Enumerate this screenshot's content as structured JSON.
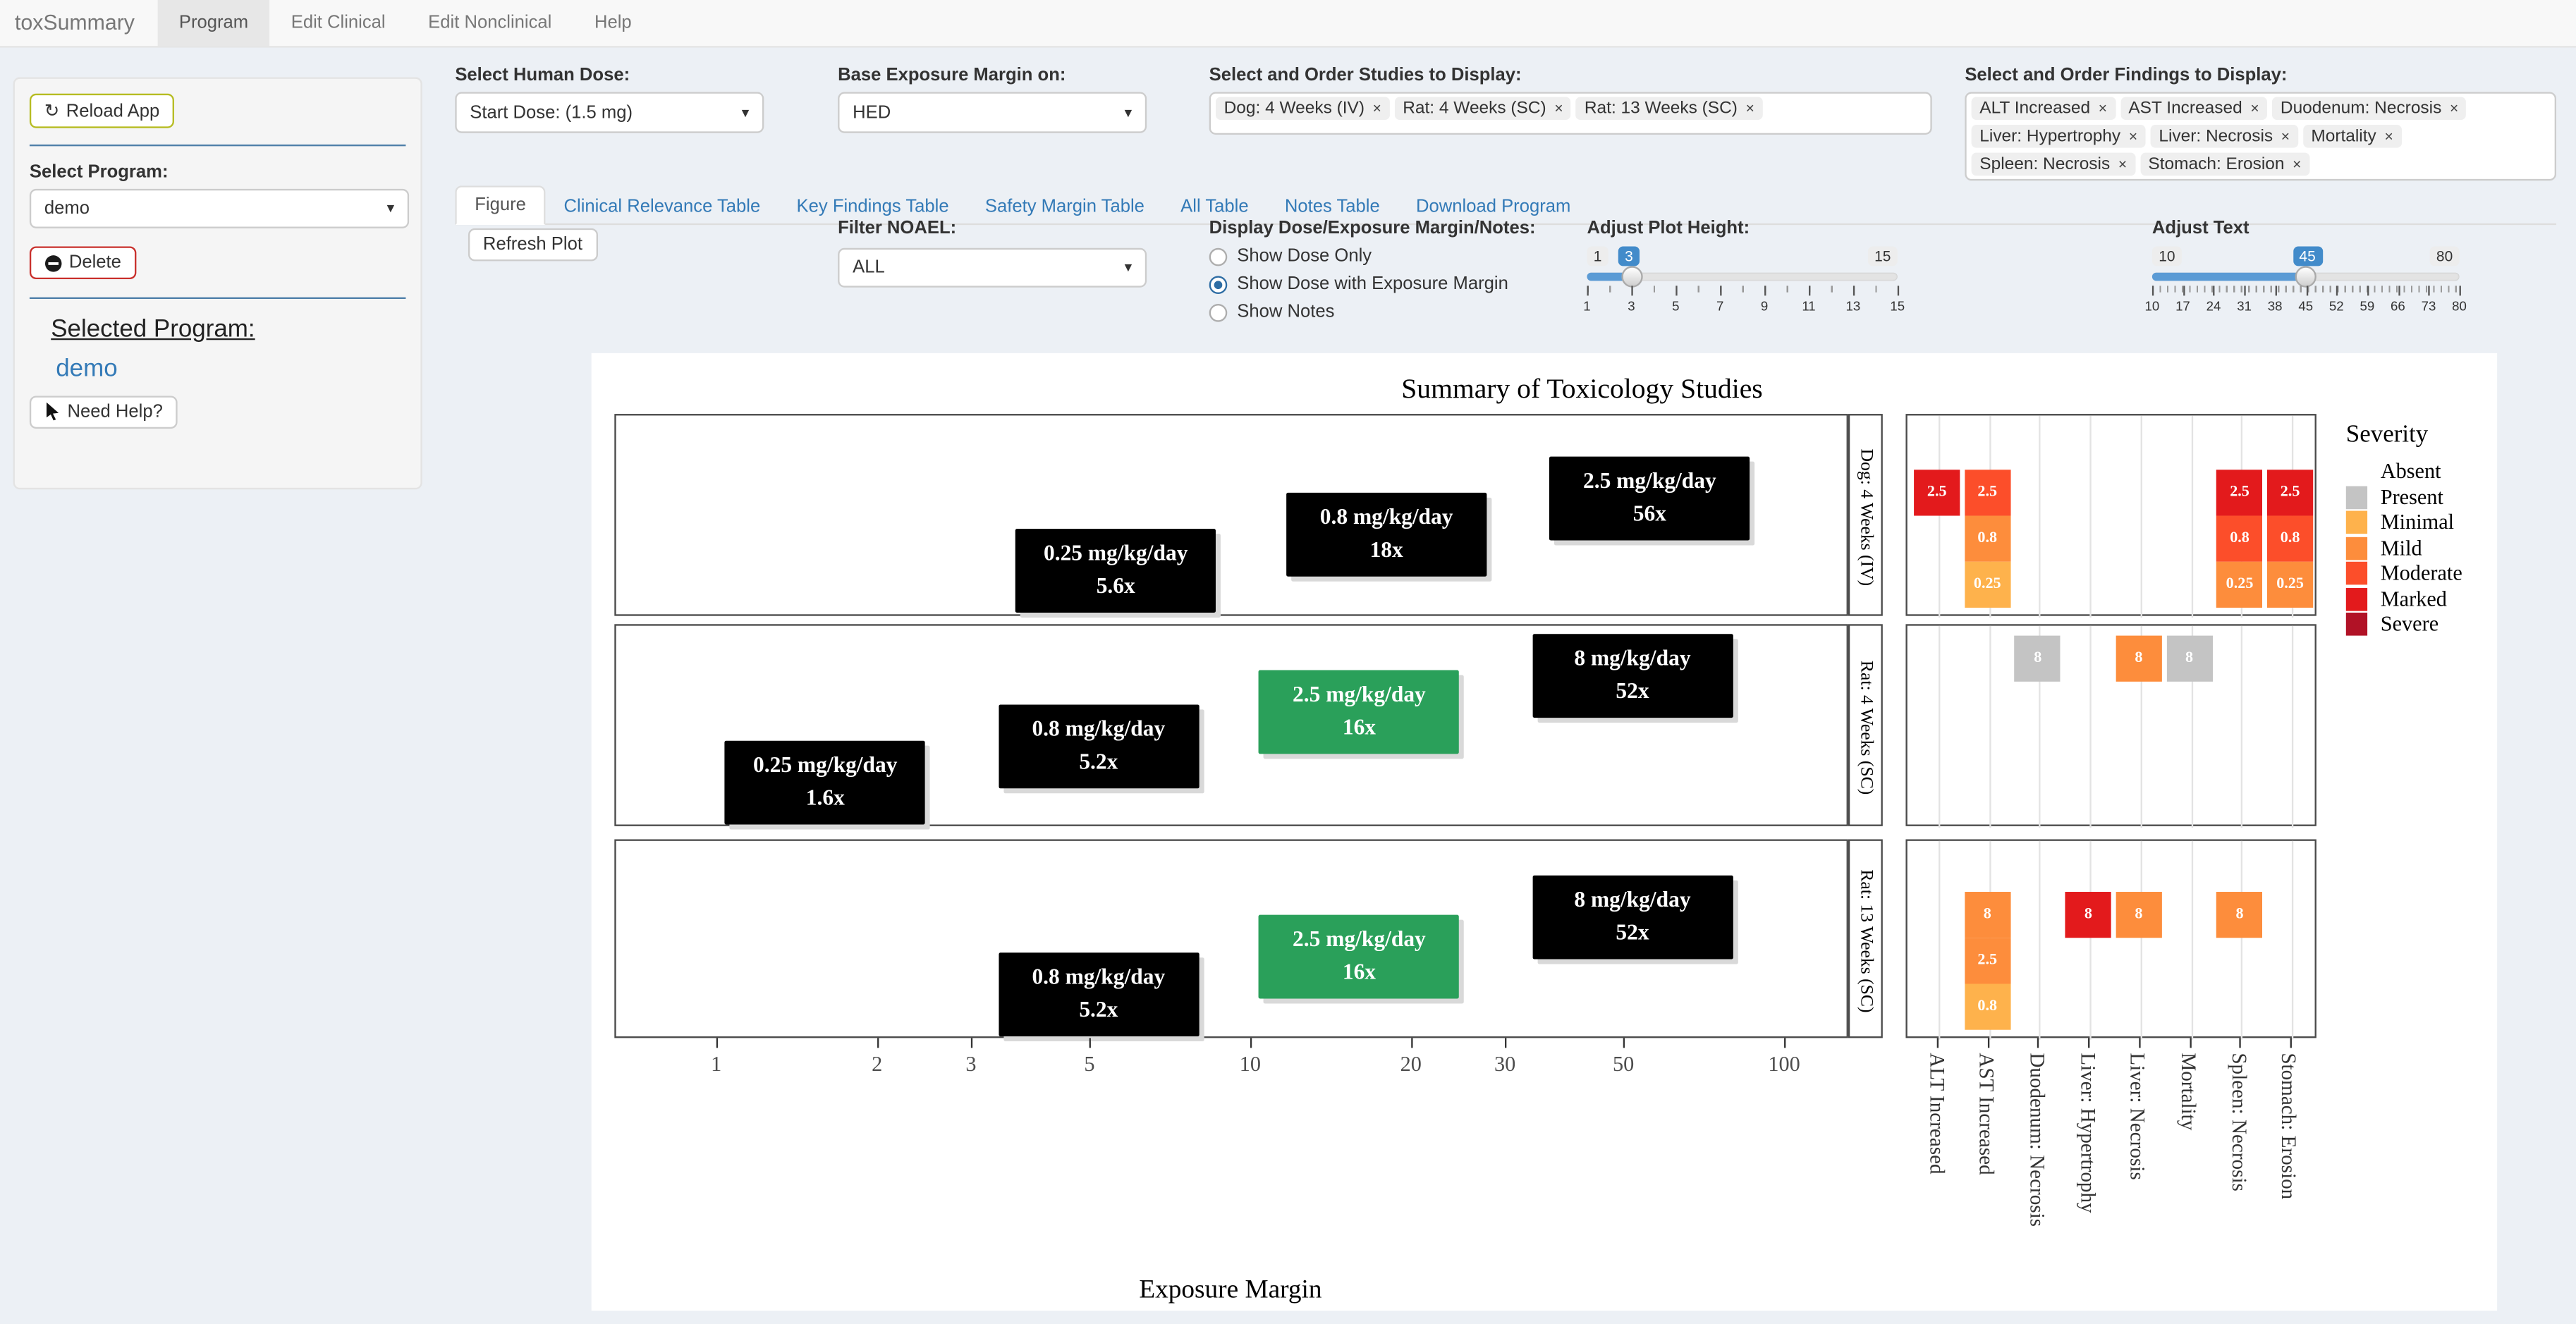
{
  "navbar": {
    "brand": "toxSummary",
    "tabs": [
      {
        "label": "Program",
        "active": true
      },
      {
        "label": "Edit Clinical",
        "active": false
      },
      {
        "label": "Edit Nonclinical",
        "active": false
      },
      {
        "label": "Help",
        "active": false
      }
    ]
  },
  "sidebar": {
    "reload_label": "Reload App",
    "select_program_label": "Select Program:",
    "program_value": "demo",
    "delete_label": "Delete",
    "selected_program_heading": "Selected Program:",
    "selected_program_value": "demo",
    "need_help_label": "Need Help?"
  },
  "controls": {
    "human_dose": {
      "label": "Select Human Dose:",
      "value": "Start Dose: (1.5 mg)"
    },
    "base_margin": {
      "label": "Base Exposure Margin on:",
      "value": "HED"
    },
    "studies": {
      "label": "Select and Order Studies to Display:",
      "tags": [
        "Dog: 4 Weeks (IV)",
        "Rat: 4 Weeks (SC)",
        "Rat: 13 Weeks (SC)"
      ]
    },
    "findings": {
      "label": "Select and Order Findings to Display:",
      "tags": [
        "ALT Increased",
        "AST Increased",
        "Duodenum: Necrosis",
        "Liver: Hypertrophy",
        "Liver: Necrosis",
        "Mortality",
        "Spleen: Necrosis",
        "Stomach: Erosion"
      ]
    },
    "filter_noael": {
      "label": "Filter NOAEL:",
      "value": "ALL"
    },
    "display_mode": {
      "label": "Display Dose/Exposure Margin/Notes:",
      "options": [
        {
          "label": "Show Dose Only",
          "selected": false
        },
        {
          "label": "Show Dose with Exposure Margin",
          "selected": true
        },
        {
          "label": "Show Notes",
          "selected": false
        }
      ]
    },
    "plot_height": {
      "label": "Adjust Plot Height:",
      "min": 1,
      "max": 15,
      "value": 3,
      "ticks": [
        1,
        3,
        5,
        7,
        9,
        11,
        13,
        15
      ]
    },
    "text_size": {
      "label": "Adjust Text",
      "min": 10,
      "max": 80,
      "value": 45,
      "ticks": [
        10,
        17,
        24,
        31,
        38,
        45,
        52,
        59,
        66,
        73,
        80
      ]
    }
  },
  "main_tabs": [
    {
      "label": "Figure",
      "active": true
    },
    {
      "label": "Clinical Relevance Table",
      "active": false
    },
    {
      "label": "Key Findings Table",
      "active": false
    },
    {
      "label": "Safety Margin Table",
      "active": false
    },
    {
      "label": "All Table",
      "active": false
    },
    {
      "label": "Notes Table",
      "active": false
    },
    {
      "label": "Download Program",
      "active": false
    }
  ],
  "refresh_button": "Refresh Plot",
  "chart_data": {
    "type": "custom-toxicology-summary",
    "title": "Summary of Toxicology Studies",
    "xlabel": "Exposure Margin",
    "x_scale": "log10",
    "x_ticks": [
      1,
      2,
      3,
      5,
      10,
      20,
      30,
      50,
      100
    ],
    "findings_columns": [
      "ALT Increased",
      "AST Increased",
      "Duodenum: Necrosis",
      "Liver: Hypertrophy",
      "Liver: Necrosis",
      "Mortality",
      "Spleen: Necrosis",
      "Stomach: Erosion"
    ],
    "severity_legend": {
      "title": "Severity",
      "levels": [
        {
          "label": "Absent",
          "color": "#FFFFFF"
        },
        {
          "label": "Present",
          "color": "#C4C4C4"
        },
        {
          "label": "Minimal",
          "color": "#FEB24C"
        },
        {
          "label": "Mild",
          "color": "#FD8D3C"
        },
        {
          "label": "Moderate",
          "color": "#FC4E2A"
        },
        {
          "label": "Marked",
          "color": "#E31A1C"
        },
        {
          "label": "Severe",
          "color": "#B11226"
        }
      ]
    },
    "dose_color": "#000000",
    "noael_color": "#2AA05A",
    "studies": [
      {
        "label": "Dog: 4 Weeks (IV)",
        "doses": [
          {
            "dose": "0.25 mg/kg/day",
            "margin": "5.6x",
            "x": 5.6,
            "noael": false
          },
          {
            "dose": "0.8 mg/kg/day",
            "margin": "18x",
            "x": 18,
            "noael": false
          },
          {
            "dose": "2.5 mg/kg/day",
            "margin": "56x",
            "x": 56,
            "noael": false
          }
        ],
        "cells": [
          {
            "col": 0,
            "slot": 0,
            "label": "2.5",
            "severity": "Marked"
          },
          {
            "col": 1,
            "slot": 0,
            "label": "2.5",
            "severity": "Moderate"
          },
          {
            "col": 1,
            "slot": 1,
            "label": "0.8",
            "severity": "Mild"
          },
          {
            "col": 1,
            "slot": 2,
            "label": "0.25",
            "severity": "Minimal"
          },
          {
            "col": 6,
            "slot": 0,
            "label": "2.5",
            "severity": "Marked"
          },
          {
            "col": 6,
            "slot": 1,
            "label": "0.8",
            "severity": "Moderate"
          },
          {
            "col": 6,
            "slot": 2,
            "label": "0.25",
            "severity": "Mild"
          },
          {
            "col": 7,
            "slot": 0,
            "label": "2.5",
            "severity": "Marked"
          },
          {
            "col": 7,
            "slot": 1,
            "label": "0.8",
            "severity": "Moderate"
          },
          {
            "col": 7,
            "slot": 2,
            "label": "0.25",
            "severity": "Mild"
          }
        ]
      },
      {
        "label": "Rat: 4 Weeks (SC)",
        "doses": [
          {
            "dose": "0.25 mg/kg/day",
            "margin": "1.6x",
            "x": 1.6,
            "noael": false
          },
          {
            "dose": "0.8 mg/kg/day",
            "margin": "5.2x",
            "x": 5.2,
            "noael": false
          },
          {
            "dose": "2.5 mg/kg/day",
            "margin": "16x",
            "x": 16,
            "noael": true
          },
          {
            "dose": "8 mg/kg/day",
            "margin": "52x",
            "x": 52,
            "noael": false
          }
        ],
        "cells": [
          {
            "col": 2,
            "slot": 0,
            "label": "8",
            "severity": "Present"
          },
          {
            "col": 4,
            "slot": 0,
            "label": "8",
            "severity": "Mild"
          },
          {
            "col": 5,
            "slot": 0,
            "label": "8",
            "severity": "Present"
          }
        ]
      },
      {
        "label": "Rat: 13 Weeks (SC)",
        "doses": [
          {
            "dose": "0.8 mg/kg/day",
            "margin": "5.2x",
            "x": 5.2,
            "noael": false
          },
          {
            "dose": "2.5 mg/kg/day",
            "margin": "16x",
            "x": 16,
            "noael": true
          },
          {
            "dose": "8 mg/kg/day",
            "margin": "52x",
            "x": 52,
            "noael": false
          }
        ],
        "cells": [
          {
            "col": 1,
            "slot": 0,
            "label": "8",
            "severity": "Mild"
          },
          {
            "col": 1,
            "slot": 1,
            "label": "2.5",
            "severity": "Mild"
          },
          {
            "col": 1,
            "slot": 2,
            "label": "0.8",
            "severity": "Minimal"
          },
          {
            "col": 3,
            "slot": 0,
            "label": "8",
            "severity": "Marked"
          },
          {
            "col": 4,
            "slot": 0,
            "label": "8",
            "severity": "Mild"
          },
          {
            "col": 6,
            "slot": 0,
            "label": "8",
            "severity": "Mild"
          }
        ]
      }
    ]
  }
}
